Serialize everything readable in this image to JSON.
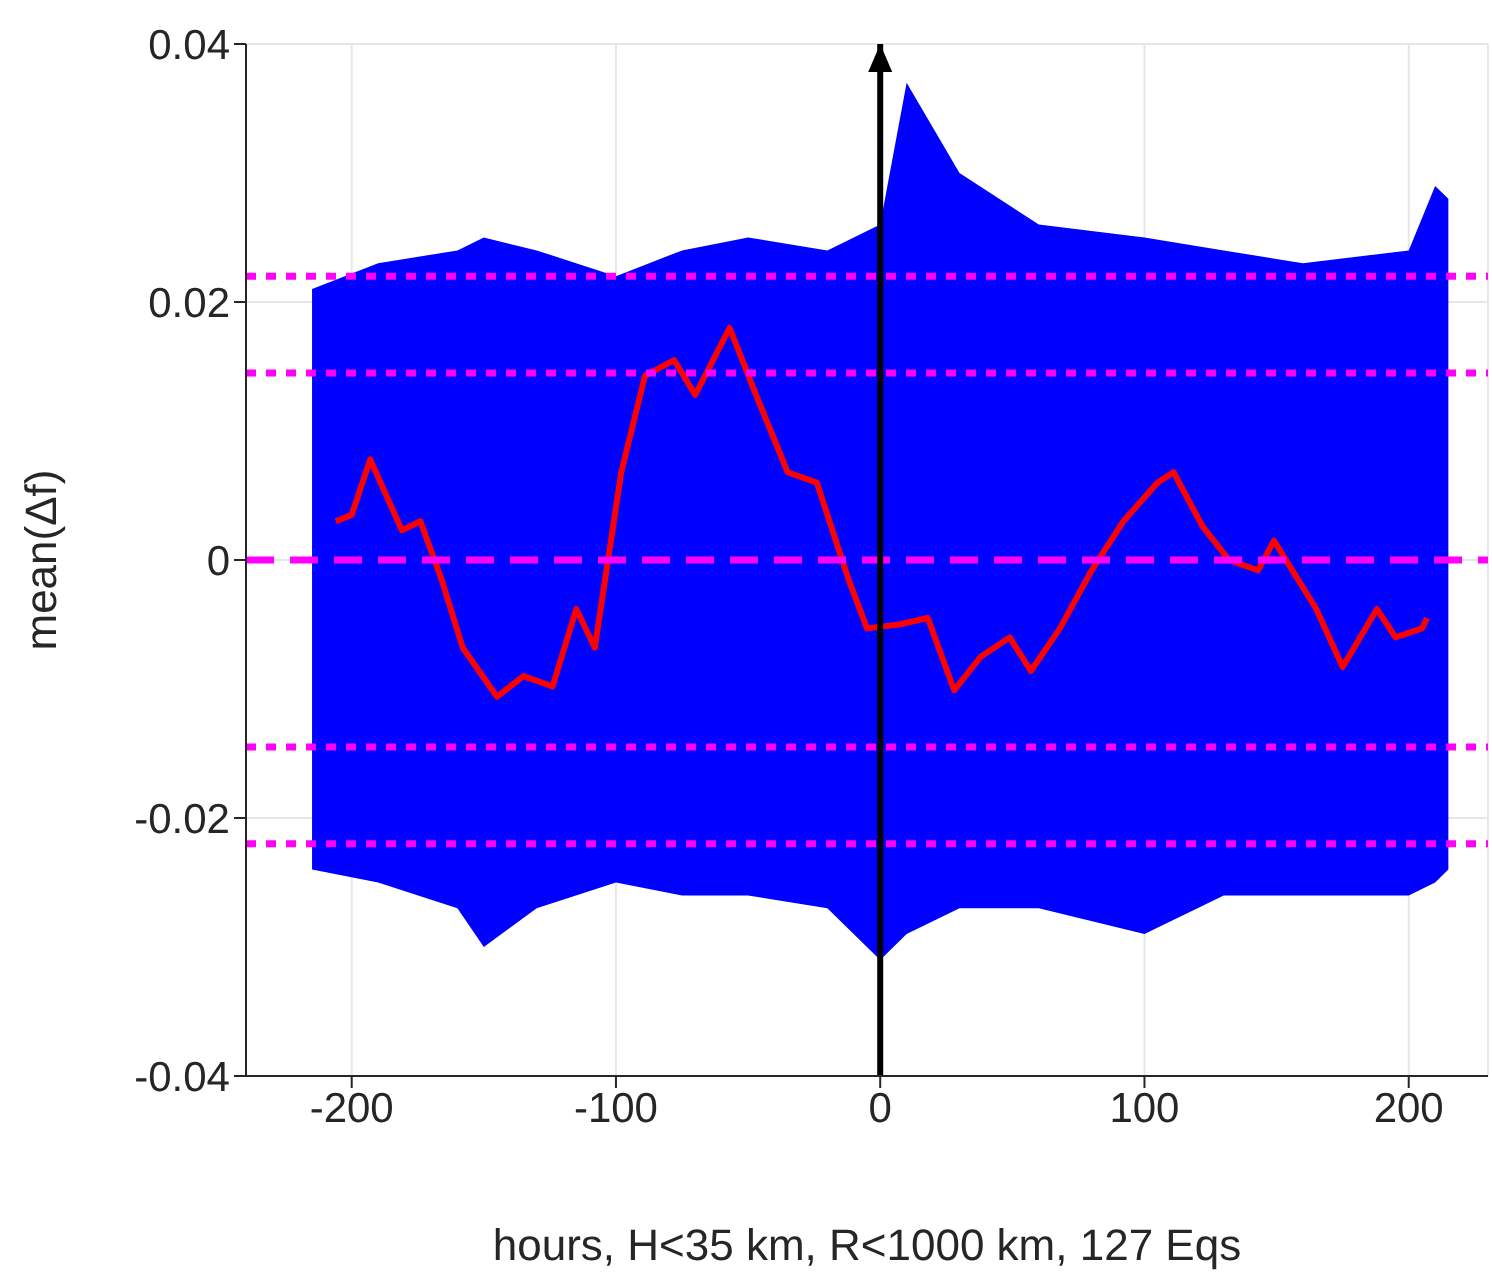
{
  "chart_data": {
    "type": "line",
    "xlabel": "hours, H<35 km, R<1000 km, 127 Eqs",
    "ylabel": "mean(Δf)",
    "xlim": [
      -240,
      230
    ],
    "xticks": [
      -200,
      -100,
      0,
      100,
      200
    ],
    "ylim": [
      -0.04,
      0.04
    ],
    "yticks": [
      -0.04,
      -0.02,
      0,
      0.02,
      0.04
    ],
    "grid": true,
    "series": [
      {
        "type": "area",
        "color": "#0000ff",
        "x": [
          -215,
          -190,
          -160,
          -150,
          -130,
          -100,
          -75,
          -50,
          -20,
          0,
          10,
          30,
          60,
          100,
          130,
          160,
          200,
          210,
          215
        ],
        "values": [
          null,
          null,
          null,
          null,
          null,
          null,
          null,
          null,
          null,
          null,
          null,
          null,
          null,
          null,
          null,
          null,
          null,
          null,
          null
        ],
        "upper": [
          0.021,
          0.023,
          0.024,
          0.025,
          0.024,
          0.022,
          0.024,
          0.025,
          0.024,
          0.026,
          0.037,
          0.03,
          0.026,
          0.025,
          0.024,
          0.023,
          0.024,
          0.029,
          0.028
        ],
        "lower": [
          -0.024,
          -0.025,
          -0.027,
          -0.03,
          -0.027,
          -0.025,
          -0.026,
          -0.026,
          -0.027,
          -0.031,
          -0.029,
          -0.027,
          -0.027,
          -0.029,
          -0.026,
          -0.026,
          -0.026,
          -0.025,
          -0.024
        ]
      },
      {
        "color": "#ff0000",
        "x": [
          -206,
          -200,
          -193,
          -181,
          -174,
          -166,
          -158,
          -145,
          -135,
          -124,
          -115,
          -108,
          -98,
          -89,
          -78,
          -70,
          -57,
          -47,
          -35,
          -24,
          -12,
          -5,
          7,
          18,
          28,
          38,
          49,
          57,
          68,
          80,
          92,
          105,
          111,
          122,
          132,
          143,
          149,
          165,
          175,
          188,
          195,
          205,
          207
        ],
        "values": [
          0.003,
          0.0035,
          0.0078,
          0.0023,
          0.003,
          -0.0015,
          -0.0068,
          -0.0106,
          -0.009,
          -0.0098,
          -0.0038,
          -0.0068,
          0.0068,
          0.0143,
          0.0155,
          0.0128,
          0.018,
          0.0128,
          0.0068,
          0.006,
          -0.0015,
          -0.0053,
          -0.005,
          -0.0045,
          -0.0101,
          -0.0075,
          -0.006,
          -0.0086,
          -0.0053,
          -0.0008,
          0.003,
          0.006,
          0.0068,
          0.0026,
          0,
          -0.0008,
          0.0015,
          -0.0038,
          -0.0083,
          -0.0038,
          -0.006,
          -0.0053,
          -0.0045
        ]
      }
    ],
    "ref_lines": [
      {
        "axis": "y",
        "value": 0.022,
        "color": "#ff00ff",
        "line_style": "dotted"
      },
      {
        "axis": "y",
        "value": 0.0145,
        "color": "#ff00ff",
        "line_style": "dotted"
      },
      {
        "axis": "y",
        "value": 0,
        "color": "#ff00ff",
        "line_style": "dashed"
      },
      {
        "axis": "y",
        "value": -0.0145,
        "color": "#ff00ff",
        "line_style": "dotted"
      },
      {
        "axis": "y",
        "value": -0.022,
        "color": "#ff00ff",
        "line_style": "dotted"
      },
      {
        "axis": "x",
        "value": 0,
        "color": "#000000",
        "line_style": "solid"
      }
    ]
  }
}
